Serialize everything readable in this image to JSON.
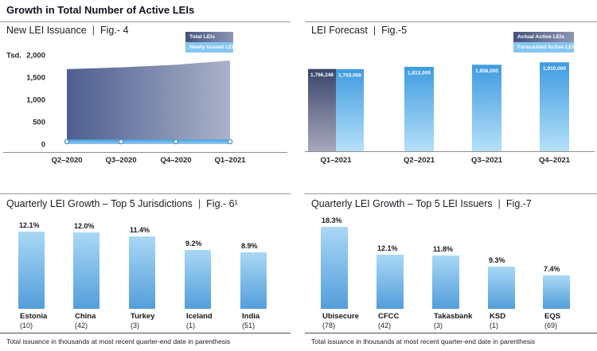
{
  "page": {
    "header": "Growth in Total Number of Active LEIs",
    "sep": "|",
    "footnote": "Total issuance in thousands at most recent quarter-end date in parenthesis"
  },
  "colors": {
    "area_gradient_left": "#4d5e8e",
    "area_gradient_right": "#a9b2c9",
    "actual_bar_top": "#39456b",
    "actual_bar_bottom": "#a8a8bc",
    "forecast_bar_top": "#3f9be1",
    "forecast_bar_bottom": "#b5e0f8",
    "growth_bar_top": "#a9d8f5",
    "growth_bar_bottom": "#539edb",
    "newly_issued_line": "#4aa0e2",
    "legend_light_blue": "#85c6f0",
    "text_dark": "#1b1b23",
    "divider_gray": "#9a9a9a"
  },
  "chart_data": [
    {
      "id": "fig4",
      "type": "area",
      "title": "New LEI Issuance",
      "fig": "Fig.- 4",
      "y_unit": "Tsd.",
      "ylim": [
        0,
        2000
      ],
      "grid": false,
      "legend_position": "top-right",
      "legend": [
        "Total LEIs",
        "Newly issued LEIs"
      ],
      "x": [
        "Q2–2020",
        "Q3–2020",
        "Q4–2020",
        "Q1–2021"
      ],
      "yticks": [
        {
          "label": "0",
          "value": 0
        },
        {
          "label": "500",
          "value": 500
        },
        {
          "label": "1,000",
          "value": 1000
        },
        {
          "label": "1,500",
          "value": 1500
        },
        {
          "label": "2,000",
          "value": 2000
        }
      ],
      "series": [
        {
          "name": "Total LEIs",
          "style": "area",
          "values_tsd": [
            1680,
            1720,
            1780,
            1875
          ]
        },
        {
          "name": "Newly issued LEIs",
          "style": "line",
          "values_tsd": [
            30,
            30,
            30,
            35
          ]
        }
      ]
    },
    {
      "id": "fig5",
      "type": "bar",
      "title": "LEI Forecast",
      "fig": "Fig.-5",
      "legend_position": "top-right",
      "legend": [
        "Actual Active LEIs",
        "Forecasted Active LEIs"
      ],
      "categories": [
        "Q1–2021",
        "Q2–2021",
        "Q3–2021",
        "Q4–2021"
      ],
      "series": [
        {
          "name": "Actual Active LEIs",
          "values": [
            1766248
          ],
          "value_labels": [
            "1,766,248"
          ],
          "category_index": [
            0
          ]
        },
        {
          "name": "Forecasted Active LEIs",
          "values": [
            1763000,
            1813000,
            1858000,
            1910000
          ],
          "value_labels": [
            "1,763,000",
            "1,813,000",
            "1,858,000",
            "1,910,000"
          ],
          "category_index": [
            0,
            1,
            2,
            3
          ]
        }
      ]
    },
    {
      "id": "fig6",
      "type": "bar",
      "title": "Quarterly LEI Growth – Top 5 Jurisdictions",
      "fig": "Fig.- 6¹",
      "categories": [
        "Estonia",
        "China",
        "Turkey",
        "Iceland",
        "India"
      ],
      "counts": [
        "(10)",
        "(42)",
        "(3)",
        "(1)",
        "(51)"
      ],
      "values": [
        12.1,
        12.0,
        11.4,
        9.2,
        8.9
      ],
      "value_labels": [
        "12.1%",
        "12.0%",
        "11.4%",
        "9.2%",
        "8.9%"
      ]
    },
    {
      "id": "fig7",
      "type": "bar",
      "title": "Quarterly LEI Growth – Top 5 LEI Issuers",
      "fig": "Fig.-7",
      "categories": [
        "Ubisecure",
        "CFCC",
        "Takasbank",
        "KSD",
        "EQS"
      ],
      "counts": [
        "(78)",
        "(42)",
        "(3)",
        "(1)",
        "(69)"
      ],
      "values": [
        18.3,
        12.1,
        11.8,
        9.3,
        7.4
      ],
      "value_labels": [
        "18.3%",
        "12.1%",
        "11.8%",
        "9.3%",
        "7.4%"
      ]
    }
  ]
}
